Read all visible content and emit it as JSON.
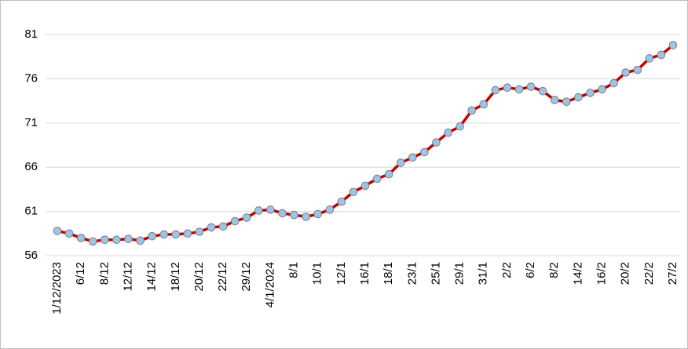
{
  "chart_data": {
    "type": "line",
    "categories": [
      "1/12/2023",
      null,
      "6/12",
      null,
      "8/12",
      null,
      "12/12",
      null,
      "14/12",
      null,
      "18/12",
      null,
      "20/12",
      null,
      "22/12",
      null,
      "29/12",
      null,
      "4/1/2024",
      null,
      "8/1",
      null,
      "10/1",
      null,
      "12/1",
      null,
      "16/1",
      null,
      "18/1",
      null,
      "23/1",
      null,
      "25/1",
      null,
      "29/1",
      null,
      "31/1",
      null,
      "2/2",
      null,
      "6/2",
      null,
      "8/2",
      null,
      "14/2",
      null,
      "16/2",
      null,
      "20/2",
      null,
      "22/2",
      null,
      "27/2"
    ],
    "values": [
      58.8,
      58.5,
      58.0,
      57.6,
      57.8,
      57.8,
      57.9,
      57.7,
      58.2,
      58.4,
      58.4,
      58.5,
      58.7,
      59.2,
      59.3,
      59.9,
      60.3,
      61.1,
      61.2,
      60.8,
      60.6,
      60.4,
      60.7,
      61.2,
      62.1,
      63.2,
      63.9,
      64.7,
      65.2,
      66.5,
      67.1,
      67.7,
      68.8,
      69.9,
      70.6,
      72.4,
      73.1,
      74.7,
      75.0,
      74.8,
      75.1,
      74.6,
      73.6,
      73.4,
      73.9,
      74.4,
      74.8,
      75.5,
      76.7,
      77.0,
      78.3,
      78.7,
      79.8
    ],
    "color": "#c00000",
    "marker_color": "#9dc3e6",
    "ylim": [
      56,
      81
    ],
    "yticks": [
      56,
      61,
      66,
      71,
      76,
      81
    ],
    "grid": true
  }
}
